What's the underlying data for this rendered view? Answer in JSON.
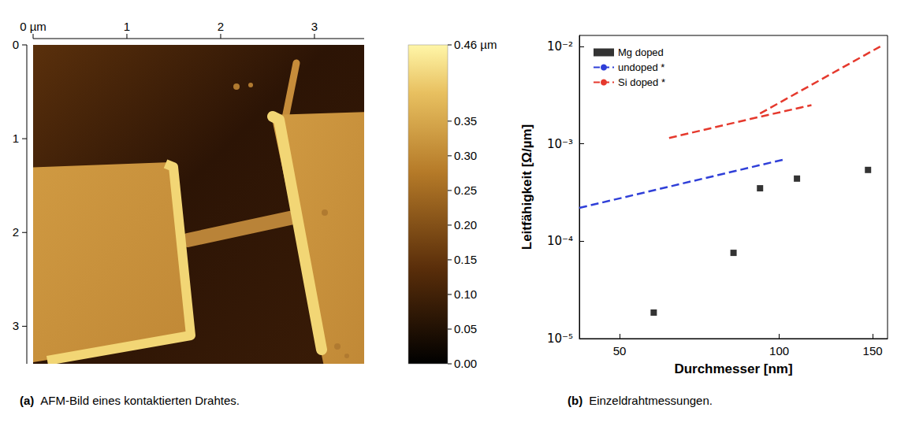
{
  "chart_data": [
    {
      "type": "image",
      "panel": "(a)",
      "caption": "AFM-Bild eines kontaktierten Drahtes.",
      "xlim": [
        0,
        3.53
      ],
      "ylim": [
        0,
        3.4
      ],
      "xticks": [
        {
          "value": 0,
          "label": "0 µm"
        },
        1,
        2,
        3
      ],
      "yticks": [
        0,
        1,
        2,
        3
      ],
      "colorbar": {
        "range": [
          0,
          0.46
        ],
        "ticks": [
          {
            "value": 0,
            "label": "0.00"
          },
          {
            "value": 0.05,
            "label": "0.05"
          },
          {
            "value": 0.1,
            "label": "0.10"
          },
          {
            "value": 0.15,
            "label": "0.15"
          },
          {
            "value": 0.2,
            "label": "0.20"
          },
          {
            "value": 0.25,
            "label": "0.25"
          },
          {
            "value": 0.3,
            "label": "0.30"
          },
          {
            "value": 0.35,
            "label": "0.35"
          },
          {
            "value": 0.46,
            "label": "0.46 µm"
          }
        ]
      }
    },
    {
      "type": "scatter",
      "panel": "(b)",
      "caption": "Einzeldrahtmessungen.",
      "x_label": "Durchmesser [nm]",
      "y_label": "Leitfähigkeit [Ω/µm]",
      "log": true,
      "grid": false,
      "legend": "upper left",
      "xlim": [
        42,
        160
      ],
      "ylim": [
        1e-05,
        0.013
      ],
      "xticks": [
        50,
        100,
        150
      ],
      "yticks": [
        {
          "value": 1e-05,
          "label": "10⁻⁵"
        },
        {
          "value": 0.0001,
          "label": "10⁻⁴"
        },
        {
          "value": 0.001,
          "label": "10⁻³"
        },
        {
          "value": 0.01,
          "label": "10⁻²"
        }
      ],
      "series": [
        {
          "name": "Mg doped",
          "type": "scatter",
          "marker": "square",
          "color": "#000000",
          "x": [
            58,
            82,
            92,
            108,
            147
          ],
          "values": [
            1.85e-05,
            7.6e-05,
            0.00035,
            0.00044,
            0.00054
          ]
        },
        {
          "name": "undoped *",
          "type": "line",
          "line_style": "dashed",
          "color": "#2f3fd8",
          "x": [
            42,
            103
          ],
          "values": [
            0.00022,
            0.0007
          ]
        },
        {
          "name": "Si doped *",
          "type": "line",
          "line_style": "dashed",
          "color": "#e5392d",
          "x": [
            62,
            92,
            115
          ],
          "values": [
            0.00115,
            0.0019,
            0.0025
          ]
        },
        {
          "name": "Si doped *",
          "type": "line",
          "line_style": "dashed",
          "color": "#e5392d",
          "x": [
            92,
            155
          ],
          "values": [
            0.00205,
            0.01
          ]
        }
      ]
    }
  ]
}
